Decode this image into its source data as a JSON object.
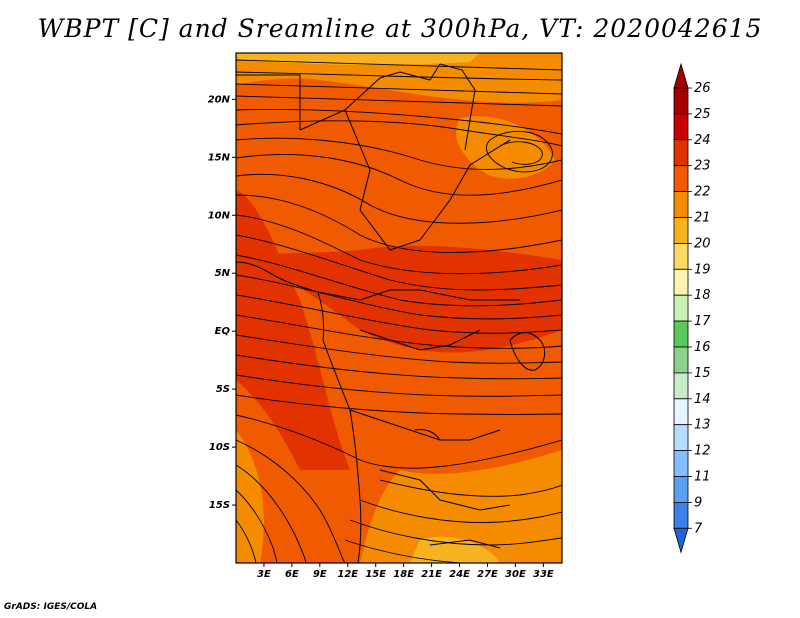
{
  "title": "WBPT [C] and Sreamline at 300hPa, VT: 2020042615",
  "footer": "GrADS: IGES/COLA",
  "map": {
    "lat_ticks": [
      "20N",
      "15N",
      "10N",
      "5N",
      "EQ",
      "5S",
      "10S",
      "15S"
    ],
    "lon_ticks": [
      "3E",
      "6E",
      "9E",
      "12E",
      "15E",
      "18E",
      "21E",
      "24E",
      "27E",
      "30E",
      "33E"
    ],
    "lat_values": [
      20,
      15,
      10,
      5,
      0,
      -5,
      -10,
      -15
    ],
    "lon_values": [
      3,
      6,
      9,
      12,
      15,
      18,
      21,
      24,
      27,
      30,
      33
    ]
  },
  "colorbar": {
    "labels": [
      "26",
      "25",
      "24",
      "23",
      "22",
      "21",
      "20",
      "19",
      "18",
      "17",
      "16",
      "15",
      "14",
      "13",
      "12",
      "11",
      "9",
      "7"
    ],
    "colors": [
      "#a50000",
      "#c80000",
      "#e13200",
      "#f05a00",
      "#f58c00",
      "#f7b31f",
      "#fadc64",
      "#fcf5b0",
      "#c8f0b4",
      "#5ac85a",
      "#8cd28c",
      "#c8ebc8",
      "#e6f5ff",
      "#b4dcff",
      "#82beff",
      "#5aa0f0",
      "#3c82e6",
      "#1e64d2"
    ],
    "top_arrow_color": "#a50000",
    "bottom_arrow_color": "#1e64d2"
  }
}
